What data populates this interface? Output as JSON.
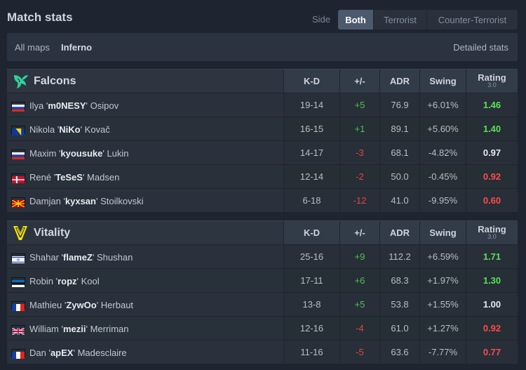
{
  "header": {
    "title": "Match stats",
    "side_label": "Side",
    "side_options": [
      "Both",
      "Terrorist",
      "Counter-Terrorist"
    ],
    "side_selected": "Both"
  },
  "maps": {
    "all_label": "All maps",
    "selected_map": "Inferno",
    "detailed_label": "Detailed stats"
  },
  "columns": {
    "kd": "K-D",
    "pm": "+/-",
    "adr": "ADR",
    "swing": "Swing",
    "rating": "Rating",
    "rating_version": "3.0"
  },
  "teams": [
    {
      "name": "Falcons",
      "logo_icon": "falcons-logo",
      "players": [
        {
          "flag": "ru",
          "first": "Ilya",
          "nick": "m0NESY",
          "last": "Osipov",
          "kd": "19-14",
          "pm": "+5",
          "adr": "76.9",
          "swing": "+6.01%",
          "rating": "1.46"
        },
        {
          "flag": "ba",
          "first": "Nikola",
          "nick": "NiKo",
          "last": "Kovač",
          "kd": "16-15",
          "pm": "+1",
          "adr": "89.1",
          "swing": "+5.60%",
          "rating": "1.40"
        },
        {
          "flag": "ru",
          "first": "Maxim",
          "nick": "kyousuke",
          "last": "Lukin",
          "kd": "14-17",
          "pm": "-3",
          "adr": "68.1",
          "swing": "-4.82%",
          "rating": "0.97"
        },
        {
          "flag": "dk",
          "first": "René",
          "nick": "TeSeS",
          "last": "Madsen",
          "kd": "12-14",
          "pm": "-2",
          "adr": "50.0",
          "swing": "-0.45%",
          "rating": "0.92"
        },
        {
          "flag": "mk",
          "first": "Damjan",
          "nick": "kyxsan",
          "last": "Stoilkovski",
          "kd": "6-18",
          "pm": "-12",
          "adr": "41.0",
          "swing": "-9.95%",
          "rating": "0.60"
        }
      ]
    },
    {
      "name": "Vitality",
      "logo_icon": "vitality-logo",
      "players": [
        {
          "flag": "il",
          "first": "Shahar",
          "nick": "flameZ",
          "last": "Shushan",
          "kd": "25-16",
          "pm": "+9",
          "adr": "112.2",
          "swing": "+6.59%",
          "rating": "1.71"
        },
        {
          "flag": "ee",
          "first": "Robin",
          "nick": "ropz",
          "last": "Kool",
          "kd": "17-11",
          "pm": "+6",
          "adr": "68.3",
          "swing": "+1.97%",
          "rating": "1.30"
        },
        {
          "flag": "fr",
          "first": "Mathieu",
          "nick": "ZywOo",
          "last": "Herbaut",
          "kd": "13-8",
          "pm": "+5",
          "adr": "53.8",
          "swing": "+1.55%",
          "rating": "1.00"
        },
        {
          "flag": "gb",
          "first": "William",
          "nick": "mezii",
          "last": "Merriman",
          "kd": "12-16",
          "pm": "-4",
          "adr": "61.0",
          "swing": "+1.27%",
          "rating": "0.92"
        },
        {
          "flag": "fr",
          "first": "Dan",
          "nick": "apEX",
          "last": "Madesclaire",
          "kd": "11-16",
          "pm": "-5",
          "adr": "63.6",
          "swing": "-7.77%",
          "rating": "0.77"
        }
      ]
    }
  ],
  "colors": {
    "positive": "#4ec24e",
    "negative": "#e0463f",
    "rating_good": "#5be05b",
    "rating_bad": "#ff4a4a"
  }
}
